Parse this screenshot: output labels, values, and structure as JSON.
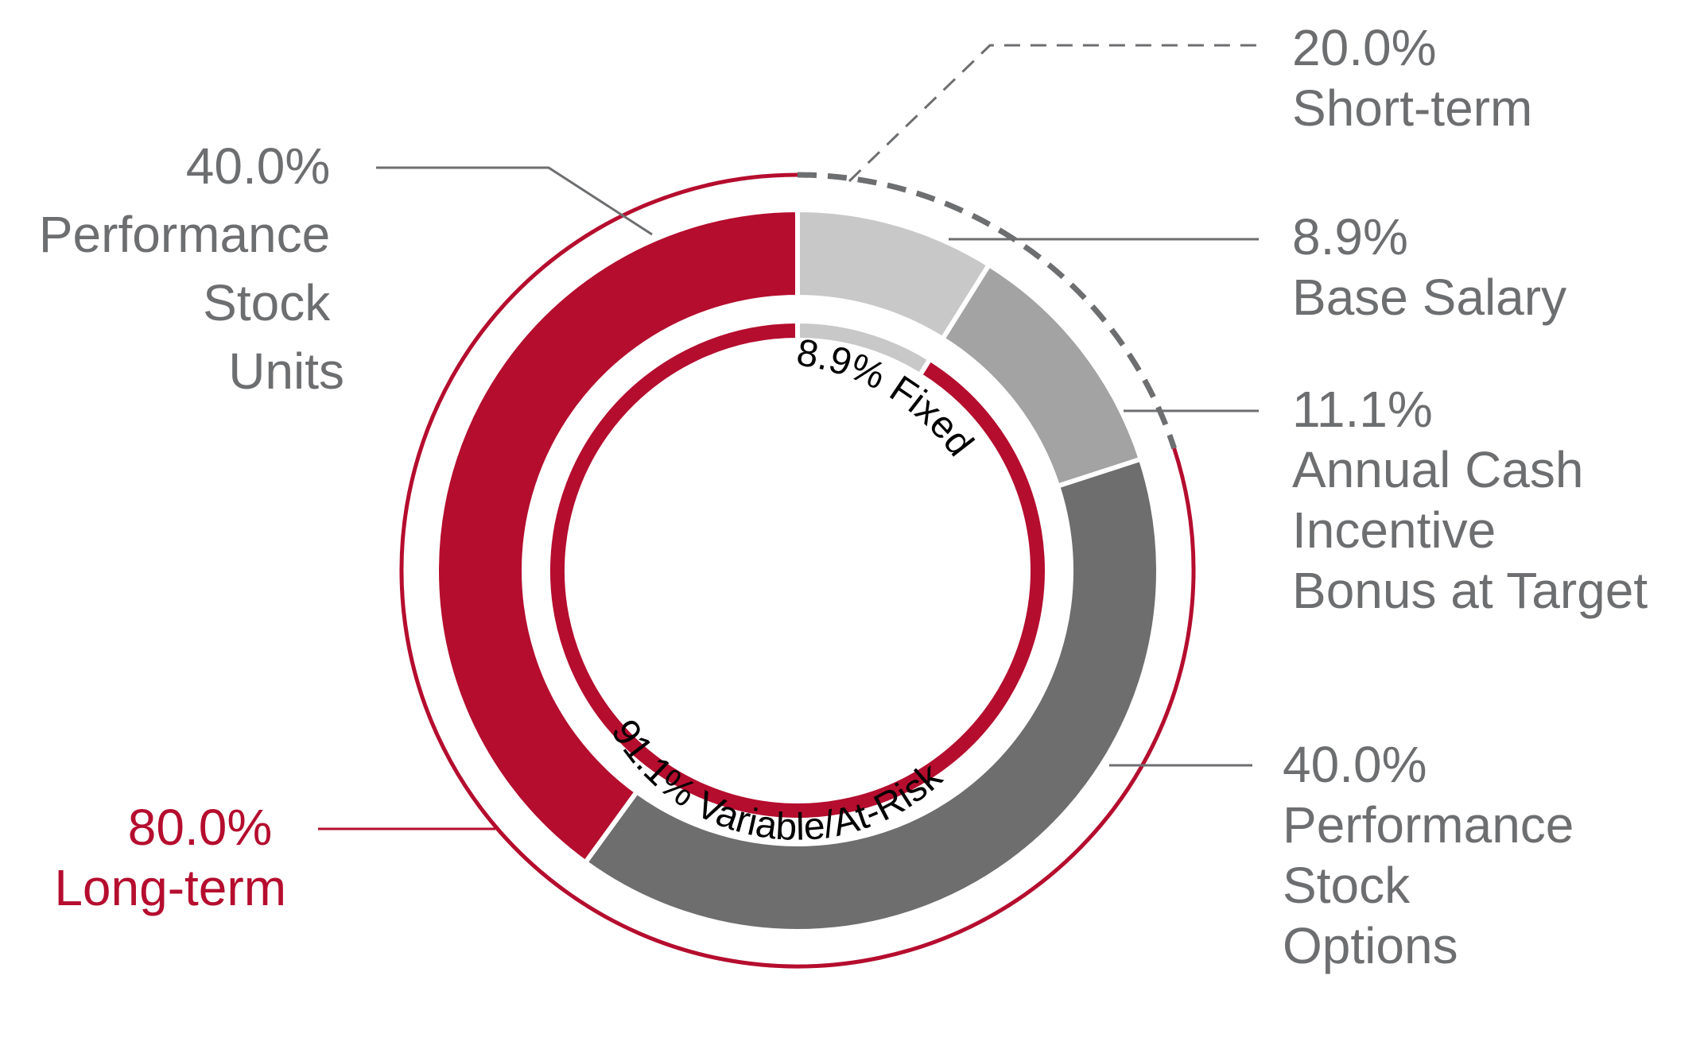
{
  "chart_data": {
    "type": "pie",
    "colors": {
      "red": "#b50d2e",
      "gray_text": "#6d6e70",
      "leader": "#6d6e70",
      "dash": "#6d6e70"
    },
    "segments": [
      {
        "id": "base-salary",
        "value": 8.9,
        "color": "#c8c8c8",
        "pct": "8.9%",
        "label": "Base Salary"
      },
      {
        "id": "annual-cash",
        "value": 11.1,
        "color": "#a3a3a3",
        "pct": "11.1%",
        "label": "Annual Cash Incentive Bonus at Target"
      },
      {
        "id": "pso",
        "value": 40.0,
        "color": "#6e6e6e",
        "pct": "40.0%",
        "label": "Performance Stock Options"
      },
      {
        "id": "psu",
        "value": 40.0,
        "color": "#b50d2e",
        "pct": "40.0%",
        "label": "Performance Stock Units"
      }
    ],
    "inner_ring": [
      {
        "id": "fixed",
        "value": 8.9,
        "color": "#c8c8c8",
        "text": "8.9% Fixed"
      },
      {
        "id": "variable",
        "value": 91.1,
        "color": "#b50d2e",
        "text": "91.1% Variable/At-Risk"
      }
    ],
    "outer_ring": [
      {
        "id": "short-term",
        "value": 20.0,
        "style": "dashed",
        "pct": "20.0%",
        "label": "Short-term"
      },
      {
        "id": "long-term",
        "value": 80.0,
        "style": "solid",
        "pct": "80.0%",
        "label": "Long-term"
      }
    ]
  },
  "labels": {
    "short_term": {
      "pct": "20.0%",
      "lines": [
        "Short-term"
      ]
    },
    "base_salary": {
      "pct": "8.9%",
      "lines": [
        "Base Salary"
      ]
    },
    "annual_cash": {
      "pct": "11.1%",
      "lines": [
        "Annual Cash",
        "Incentive",
        "Bonus at Target"
      ]
    },
    "pso": {
      "pct": "40.0%",
      "lines": [
        "Performance",
        "Stock",
        "Options"
      ]
    },
    "psu": {
      "pct": "40.0%",
      "lines": [
        "Performance",
        "Stock",
        "Units"
      ]
    },
    "long_term": {
      "pct": "80.0%",
      "lines": [
        "Long-term"
      ]
    }
  }
}
